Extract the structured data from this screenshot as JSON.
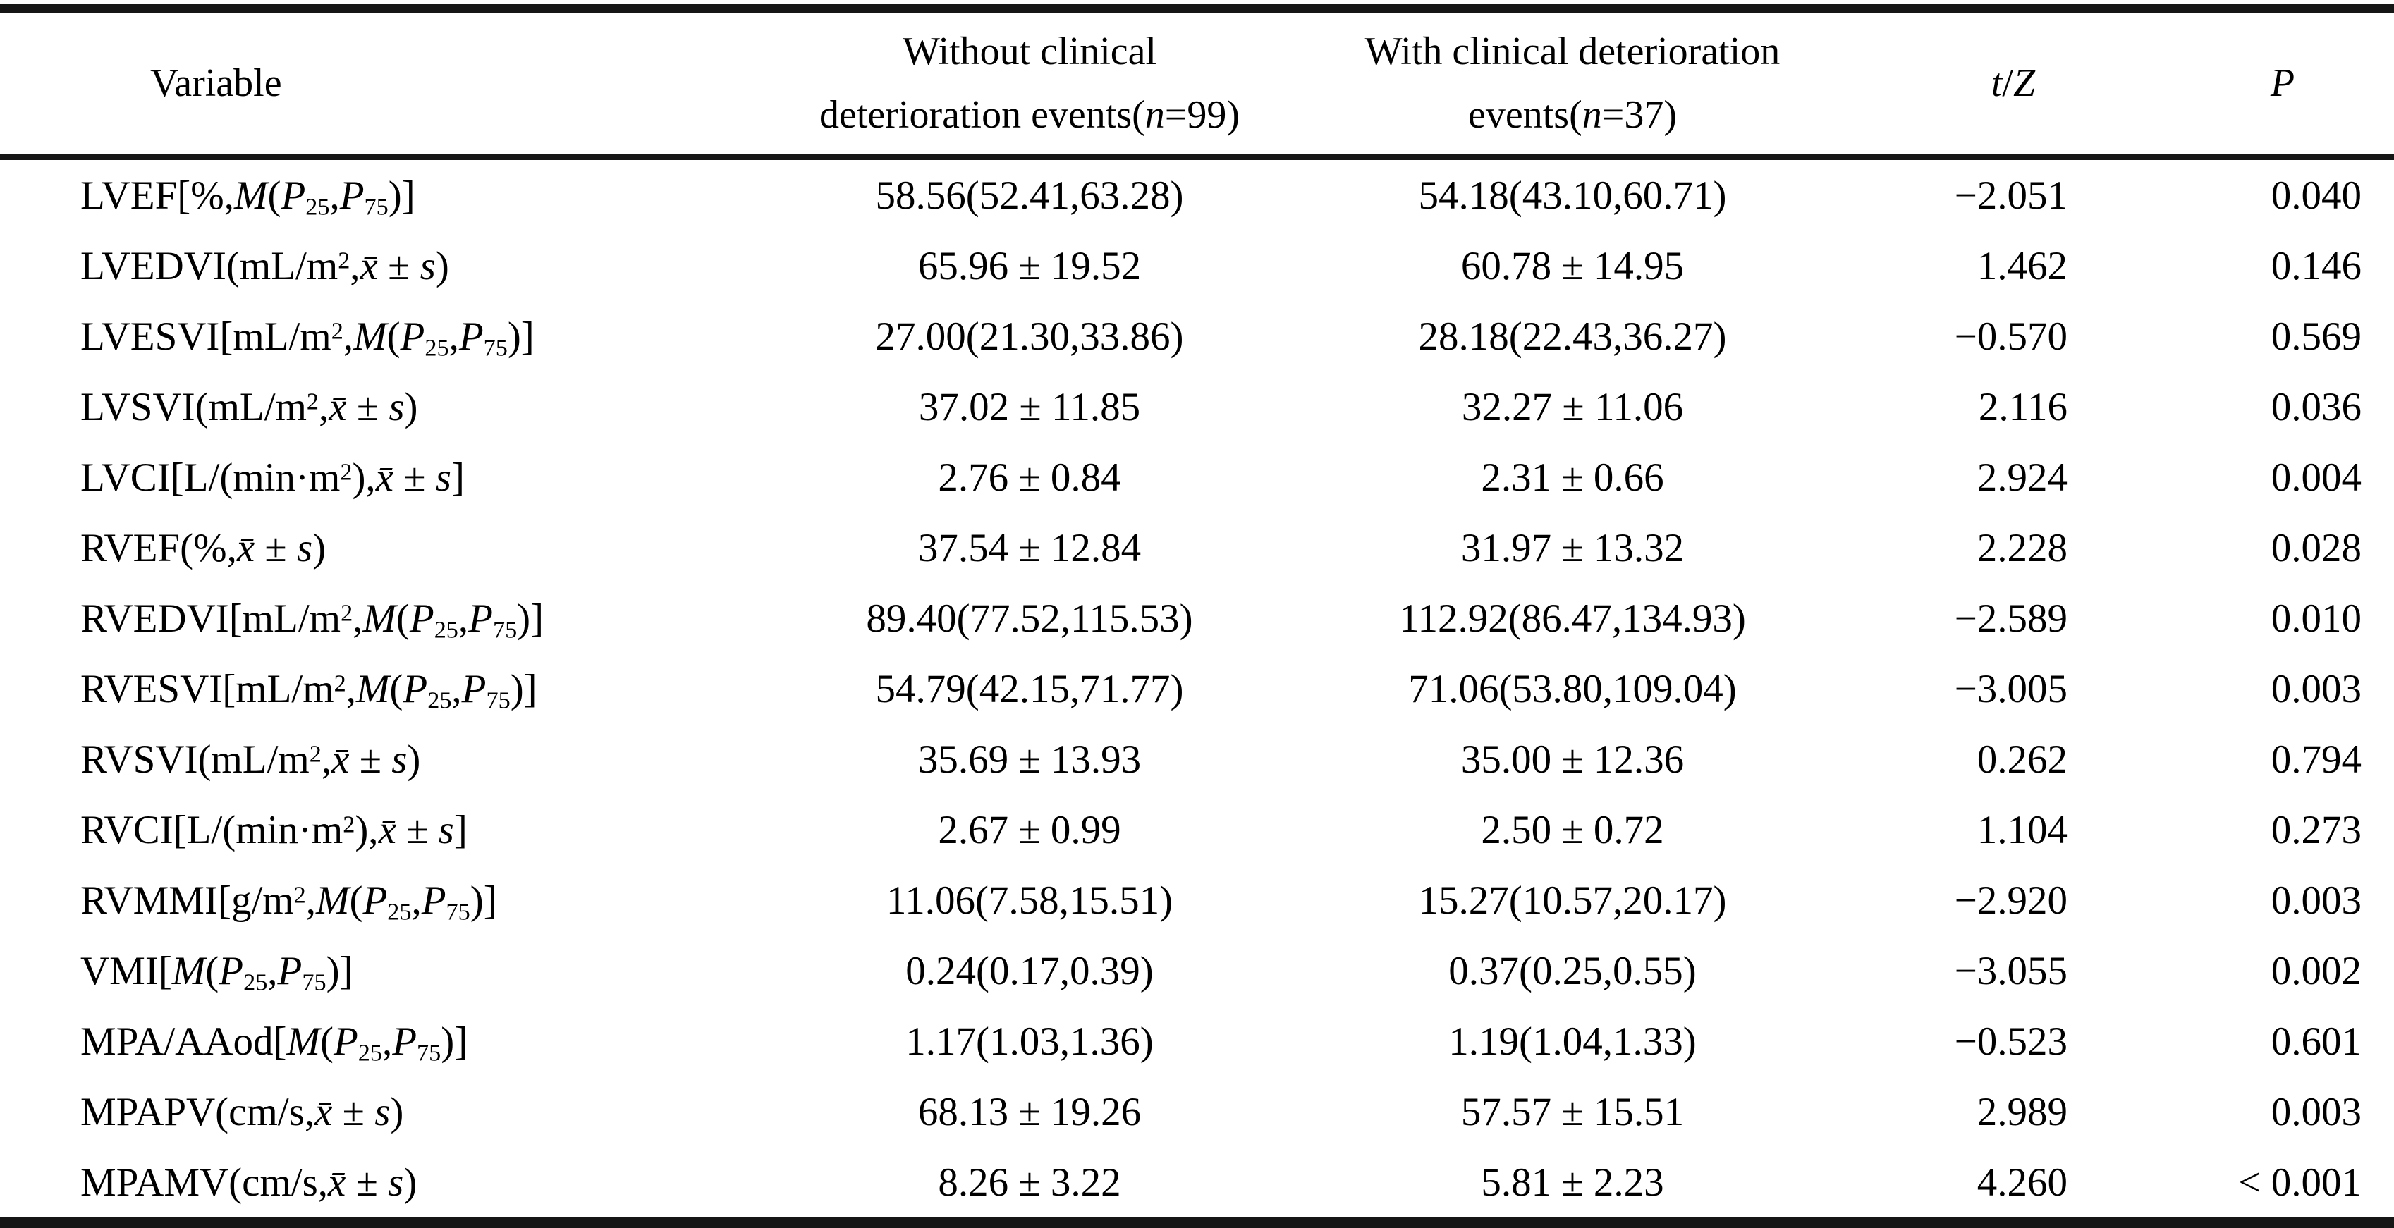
{
  "table": {
    "columns": [
      {
        "label": "Variable"
      },
      {
        "label_line1": "Without clinical",
        "label_line2": "deterioration events(*n*=99)"
      },
      {
        "label_line1": "With clinical deterioration",
        "label_line2": "events(*n*=37)"
      },
      {
        "label": "*t*/*Z*"
      },
      {
        "label": "*P*"
      }
    ],
    "rows": [
      {
        "variable": "LVEF[%,*M*(*P*~25~,*P*~75~)]",
        "group1": "58.56(52.41,63.28)",
        "group2": "54.18(43.10,60.71)",
        "tz": "−2.051",
        "p": "0.040"
      },
      {
        "variable": "LVEDVI(mL/m^2^,*x̄* ± *s*)",
        "group1": "65.96 ± 19.52",
        "group2": "60.78 ± 14.95",
        "tz": "1.462",
        "p": "0.146"
      },
      {
        "variable": "LVESVI[mL/m^2^,*M*(*P*~25~,*P*~75~)]",
        "group1": "27.00(21.30,33.86)",
        "group2": "28.18(22.43,36.27)",
        "tz": "−0.570",
        "p": "0.569"
      },
      {
        "variable": "LVSVI(mL/m^2^,*x̄* ± *s*)",
        "group1": "37.02 ± 11.85",
        "group2": "32.27 ± 11.06",
        "tz": "2.116",
        "p": "0.036"
      },
      {
        "variable": "LVCI[L/(min·m^2^),*x̄* ± *s*]",
        "group1": "2.76 ± 0.84",
        "group2": "2.31 ± 0.66",
        "tz": "2.924",
        "p": "0.004"
      },
      {
        "variable": "RVEF(%,*x̄* ± *s*)",
        "group1": "37.54 ± 12.84",
        "group2": "31.97 ± 13.32",
        "tz": "2.228",
        "p": "0.028"
      },
      {
        "variable": "RVEDVI[mL/m^2^,*M*(*P*~25~,*P*~75~)]",
        "group1": "89.40(77.52,115.53)",
        "group2": "112.92(86.47,134.93)",
        "tz": "−2.589",
        "p": "0.010"
      },
      {
        "variable": "RVESVI[mL/m^2^,*M*(*P*~25~,*P*~75~)]",
        "group1": "54.79(42.15,71.77)",
        "group2": "71.06(53.80,109.04)",
        "tz": "−3.005",
        "p": "0.003"
      },
      {
        "variable": "RVSVI(mL/m^2^,*x̄* ± *s*)",
        "group1": "35.69 ± 13.93",
        "group2": "35.00 ± 12.36",
        "tz": "0.262",
        "p": "0.794"
      },
      {
        "variable": "RVCI[L/(min·m^2^),*x̄* ± *s*]",
        "group1": "2.67 ± 0.99",
        "group2": "2.50 ± 0.72",
        "tz": "1.104",
        "p": "0.273"
      },
      {
        "variable": "RVMMI[g/m^2^,*M*(*P*~25~,*P*~75~)]",
        "group1": "11.06(7.58,15.51)",
        "group2": "15.27(10.57,20.17)",
        "tz": "−2.920",
        "p": "0.003"
      },
      {
        "variable": "VMI[*M*(*P*~25~,*P*~75~)]",
        "group1": "0.24(0.17,0.39)",
        "group2": "0.37(0.25,0.55)",
        "tz": "−3.055",
        "p": "0.002"
      },
      {
        "variable": "MPA/AAod[*M*(*P*~25~,*P*~75~)]",
        "group1": "1.17(1.03,1.36)",
        "group2": "1.19(1.04,1.33)",
        "tz": "−0.523",
        "p": "0.601"
      },
      {
        "variable": "MPAPV(cm/s,*x̄* ± *s*)",
        "group1": "68.13 ± 19.26",
        "group2": "57.57 ± 15.51",
        "tz": "2.989",
        "p": "0.003"
      },
      {
        "variable": "MPAMV(cm/s,*x̄* ± *s*)",
        "group1": "8.26 ± 3.22",
        "group2": "5.81 ± 2.23",
        "tz": "4.260",
        "p": "< 0.001"
      }
    ]
  }
}
